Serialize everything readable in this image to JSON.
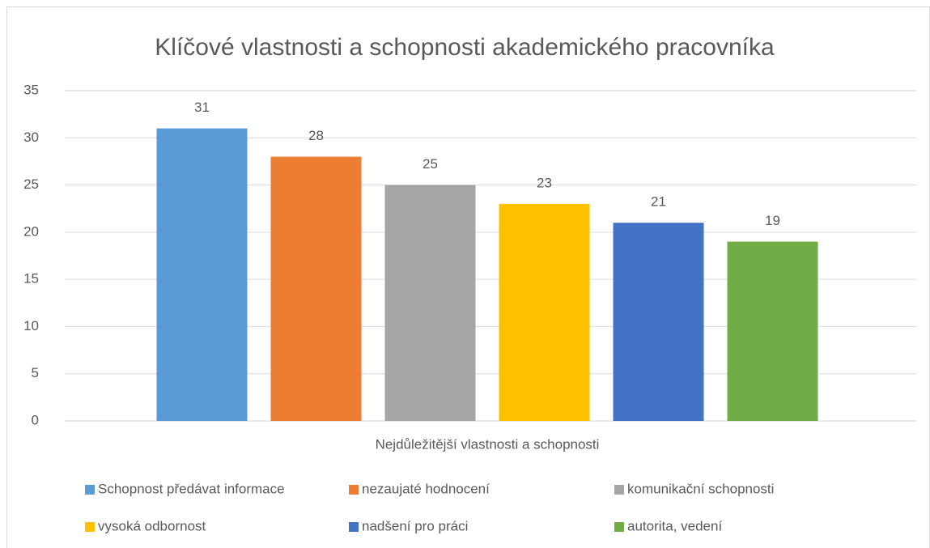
{
  "chart_data": {
    "type": "bar",
    "title": "Klíčové vlastnosti a schopnosti akademického pracovníka",
    "categories": [
      "Nejdůležitější vlastnosti a schopnosti"
    ],
    "series": [
      {
        "name": "Schopnost předávat informace",
        "color": "#5b9bd5",
        "values": [
          31
        ]
      },
      {
        "name": "nezaujaté hodnocení",
        "color": "#ed7d31",
        "values": [
          28
        ]
      },
      {
        "name": "komunikační schopnosti",
        "color": "#a5a5a5",
        "values": [
          25
        ]
      },
      {
        "name": "vysoká odbornost",
        "color": "#ffc000",
        "values": [
          23
        ]
      },
      {
        "name": "nadšení pro práci",
        "color": "#4472c4",
        "values": [
          21
        ]
      },
      {
        "name": "autorita, vedení",
        "color": "#70ad47",
        "values": [
          19
        ]
      }
    ],
    "ylim": [
      0,
      35
    ],
    "yticks": [
      0,
      5,
      10,
      15,
      20,
      25,
      30,
      35
    ],
    "grid": true,
    "legend": "bottom"
  }
}
